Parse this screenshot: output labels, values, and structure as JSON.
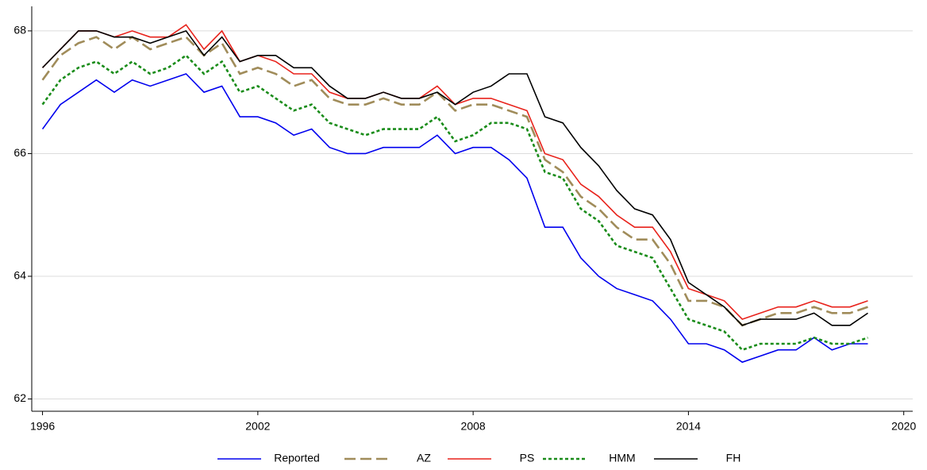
{
  "chart_data": {
    "type": "line",
    "x": [
      1996,
      1996.5,
      1997,
      1997.5,
      1998,
      1998.5,
      1999,
      1999.5,
      2000,
      2000.5,
      2001,
      2001.5,
      2002,
      2002.5,
      2003,
      2003.5,
      2004,
      2004.5,
      2005,
      2005.5,
      2006,
      2006.5,
      2007,
      2007.5,
      2008,
      2008.5,
      2009,
      2009.5,
      2010,
      2010.5,
      2011,
      2011.5,
      2012,
      2012.5,
      2013,
      2013.5,
      2014,
      2014.5,
      2015,
      2015.5,
      2016,
      2016.5,
      2017,
      2017.5,
      2018,
      2018.5,
      2019
    ],
    "series": [
      {
        "name": "Reported",
        "color": "#0000ee",
        "dash": "solid",
        "values": [
          66.4,
          66.8,
          67.0,
          67.2,
          67.0,
          67.2,
          67.1,
          67.2,
          67.3,
          67.0,
          67.1,
          66.6,
          66.6,
          66.5,
          66.3,
          66.4,
          66.1,
          66.0,
          66.0,
          66.1,
          66.1,
          66.1,
          66.3,
          66.0,
          66.1,
          66.1,
          65.9,
          65.6,
          64.8,
          64.8,
          64.3,
          64.0,
          63.8,
          63.7,
          63.6,
          63.3,
          62.9,
          62.9,
          62.8,
          62.6,
          62.7,
          62.8,
          62.8,
          63.0,
          62.8,
          62.9,
          62.9
        ]
      },
      {
        "name": "AZ",
        "color": "#a08c5a",
        "dash": "dashed",
        "values": [
          67.2,
          67.6,
          67.8,
          67.9,
          67.7,
          67.9,
          67.7,
          67.8,
          67.9,
          67.6,
          67.8,
          67.3,
          67.4,
          67.3,
          67.1,
          67.2,
          66.9,
          66.8,
          66.8,
          66.9,
          66.8,
          66.8,
          67.0,
          66.7,
          66.8,
          66.8,
          66.7,
          66.6,
          65.9,
          65.7,
          65.3,
          65.1,
          64.8,
          64.6,
          64.6,
          64.2,
          63.6,
          63.6,
          63.5,
          63.2,
          63.3,
          63.4,
          63.4,
          63.5,
          63.4,
          63.4,
          63.5
        ]
      },
      {
        "name": "PS",
        "color": "#e8221b",
        "dash": "solid",
        "values": [
          67.4,
          67.7,
          68.0,
          68.0,
          67.9,
          68.0,
          67.9,
          67.9,
          68.1,
          67.7,
          68.0,
          67.5,
          67.6,
          67.5,
          67.3,
          67.3,
          67.0,
          66.9,
          66.9,
          67.0,
          66.9,
          66.9,
          67.1,
          66.8,
          66.9,
          66.9,
          66.8,
          66.7,
          66.0,
          65.9,
          65.5,
          65.3,
          65.0,
          64.8,
          64.8,
          64.4,
          63.8,
          63.7,
          63.6,
          63.3,
          63.4,
          63.5,
          63.5,
          63.6,
          63.5,
          63.5,
          63.6
        ]
      },
      {
        "name": "HMM",
        "color": "#1a8c1a",
        "dash": "dotted",
        "values": [
          66.8,
          67.2,
          67.4,
          67.5,
          67.3,
          67.5,
          67.3,
          67.4,
          67.6,
          67.3,
          67.5,
          67.0,
          67.1,
          66.9,
          66.7,
          66.8,
          66.5,
          66.4,
          66.3,
          66.4,
          66.4,
          66.4,
          66.6,
          66.2,
          66.3,
          66.5,
          66.5,
          66.4,
          65.7,
          65.6,
          65.1,
          64.9,
          64.5,
          64.4,
          64.3,
          63.8,
          63.3,
          63.2,
          63.1,
          62.8,
          62.9,
          62.9,
          62.9,
          63.0,
          62.9,
          62.9,
          63.0
        ]
      },
      {
        "name": "FH",
        "color": "#000000",
        "dash": "solid",
        "values": [
          67.4,
          67.7,
          68.0,
          68.0,
          67.9,
          67.9,
          67.8,
          67.9,
          68.0,
          67.6,
          67.9,
          67.5,
          67.6,
          67.6,
          67.4,
          67.4,
          67.1,
          66.9,
          66.9,
          67.0,
          66.9,
          66.9,
          67.0,
          66.8,
          67.0,
          67.1,
          67.3,
          67.3,
          66.6,
          66.5,
          66.1,
          65.8,
          65.4,
          65.1,
          65.0,
          64.6,
          63.9,
          63.7,
          63.5,
          63.2,
          63.3,
          63.3,
          63.3,
          63.4,
          63.2,
          63.2,
          63.4
        ]
      }
    ],
    "xlim": [
      1995.7,
      2020.25
    ],
    "xticks": [
      1996,
      2002,
      2008,
      2014,
      2020
    ],
    "ylim": [
      61.8,
      68.4
    ],
    "yticks": [
      62,
      64,
      66,
      68
    ],
    "grid": true
  }
}
